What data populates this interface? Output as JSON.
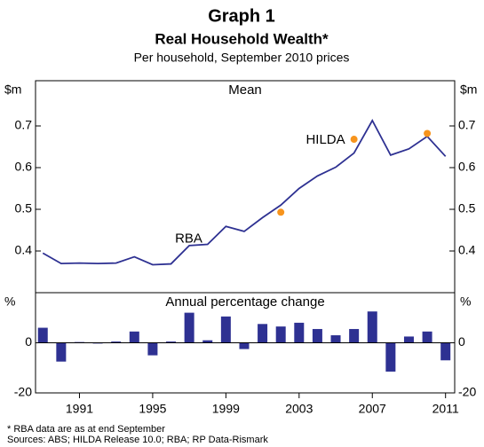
{
  "header": {
    "title": "Graph 1",
    "subtitle": "Real Household Wealth*",
    "note": "Per household, September 2010 prices"
  },
  "chart_data": [
    {
      "type": "line",
      "title": "Mean",
      "y_unit": "$m",
      "x": [
        1989,
        1990,
        1991,
        1992,
        1993,
        1994,
        1995,
        1996,
        1997,
        1998,
        1999,
        2000,
        2001,
        2002,
        2003,
        2004,
        2005,
        2006,
        2007,
        2008,
        2009,
        2010,
        2011
      ],
      "series": [
        {
          "name": "RBA",
          "color": "#2e3192",
          "values": [
            0.395,
            0.37,
            0.371,
            0.37,
            0.371,
            0.386,
            0.367,
            0.369,
            0.413,
            0.416,
            0.459,
            0.447,
            0.48,
            0.51,
            0.55,
            0.58,
            0.601,
            0.635,
            0.713,
            0.63,
            0.645,
            0.675,
            0.627
          ]
        },
        {
          "name": "HILDA",
          "color": "#f7941d",
          "values": [
            null,
            null,
            null,
            null,
            null,
            null,
            null,
            null,
            null,
            null,
            null,
            null,
            null,
            0.493,
            null,
            null,
            null,
            0.668,
            null,
            null,
            null,
            0.682,
            null
          ]
        }
      ],
      "xlim": [
        1988.6,
        2011.5
      ],
      "ylim": [
        0.3,
        0.8
      ],
      "yticks": [
        0.4,
        0.5,
        0.6,
        0.7
      ],
      "grid": false
    },
    {
      "type": "bar",
      "title": "Annual percentage change",
      "y_unit": "%",
      "color": "#2e3192",
      "x": [
        1989,
        1990,
        1991,
        1992,
        1993,
        1994,
        1995,
        1996,
        1997,
        1998,
        1999,
        2000,
        2001,
        2002,
        2003,
        2004,
        2005,
        2006,
        2007,
        2008,
        2009,
        2010,
        2011
      ],
      "values": [
        6,
        -7.5,
        0.3,
        -0.3,
        0.5,
        4.5,
        -5,
        0.5,
        12,
        1,
        10.5,
        -2.5,
        7.5,
        6.5,
        8,
        5.5,
        3,
        5.5,
        12.5,
        -11.5,
        2.5,
        4.5,
        -7
      ],
      "xlim": [
        1988.6,
        2011.5
      ],
      "ylim": [
        -20,
        20
      ],
      "yticks": [
        -20,
        0
      ],
      "xticks": [
        1991,
        1995,
        1999,
        2003,
        2007,
        2011
      ],
      "grid": false
    }
  ],
  "footer": {
    "footnote": "*    RBA data are as at end September",
    "sources": "Sources: ABS; HILDA Release 10.0; RBA; RP Data-Rismark"
  }
}
